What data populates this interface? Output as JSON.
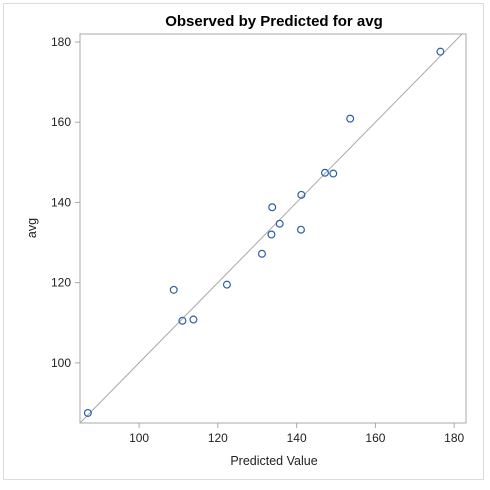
{
  "chart_data": {
    "type": "scatter",
    "title": "Observed by Predicted for avg",
    "xlabel": "Predicted Value",
    "ylabel": "avg",
    "xlim": [
      85,
      183
    ],
    "ylim": [
      85,
      182
    ],
    "xticks": [
      100,
      120,
      140,
      160,
      180
    ],
    "yticks": [
      100,
      120,
      140,
      160,
      180
    ],
    "reference_line": "diagonal y = x",
    "grid": false,
    "colors": {
      "marker": "#2a5fa8",
      "reference_line": "#a8a8a8",
      "frame": "#a8a8a8"
    },
    "points": [
      {
        "x": 87.0,
        "y": 87.5
      },
      {
        "x": 108.8,
        "y": 118.2
      },
      {
        "x": 111.0,
        "y": 110.5
      },
      {
        "x": 113.8,
        "y": 110.8
      },
      {
        "x": 122.3,
        "y": 119.5
      },
      {
        "x": 131.2,
        "y": 127.2
      },
      {
        "x": 133.6,
        "y": 132.0
      },
      {
        "x": 133.8,
        "y": 138.8
      },
      {
        "x": 135.7,
        "y": 134.7
      },
      {
        "x": 141.1,
        "y": 133.2
      },
      {
        "x": 141.2,
        "y": 141.9
      },
      {
        "x": 147.2,
        "y": 147.4
      },
      {
        "x": 149.3,
        "y": 147.2
      },
      {
        "x": 153.6,
        "y": 160.9
      },
      {
        "x": 176.5,
        "y": 177.6
      }
    ]
  }
}
